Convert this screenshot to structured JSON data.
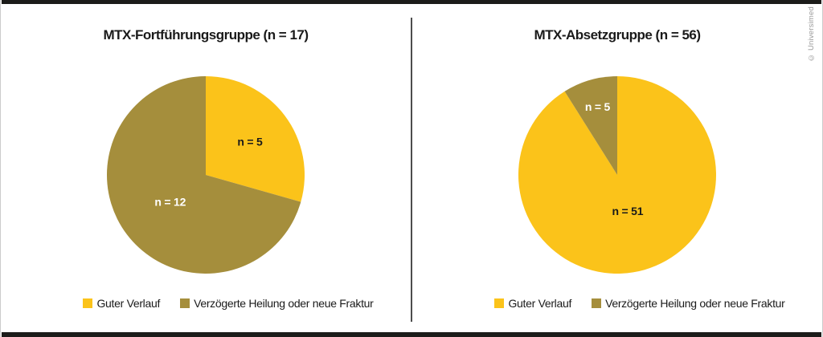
{
  "page": {
    "credit": "© Universimed",
    "background": "#ffffff",
    "top_bar_color": "#1c1c1a",
    "bottom_bar_color": "#1c1c1a",
    "divider_color": "#4d4d4d",
    "border_color": "#cccccc"
  },
  "colors": {
    "yellow": "#FBC31A",
    "olive": "#A58E3C",
    "label_dark": "#1a1a1a",
    "label_light": "#ffffff"
  },
  "legend": {
    "items": [
      {
        "label": "Guter Verlauf",
        "color": "#FBC31A"
      },
      {
        "label": "Verzögerte Heilung oder neue Fraktur",
        "color": "#A58E3C"
      }
    ]
  },
  "chart_data": [
    {
      "type": "pie",
      "title": "MTX-Fortführungsgruppe (n = 17)",
      "n_total": 17,
      "start_angle_deg": 0,
      "direction": "clockwise",
      "legend_position": "bottom",
      "slices": [
        {
          "name": "Guter Verlauf",
          "value": 5,
          "label": "n = 5",
          "color": "#FBC31A",
          "label_color": "#1a1a1a",
          "label_r": 0.56
        },
        {
          "name": "Verzögerte Heilung oder neue Fraktur",
          "value": 12,
          "label": "n = 12",
          "color": "#A58E3C",
          "label_color": "#ffffff",
          "label_r": 0.45
        }
      ]
    },
    {
      "type": "pie",
      "title": "MTX-Absetzgruppe (n = 56)",
      "n_total": 56,
      "start_angle_deg": 0,
      "direction": "clockwise",
      "legend_position": "bottom",
      "slices": [
        {
          "name": "Guter Verlauf",
          "value": 51,
          "label": "n = 51",
          "color": "#FBC31A",
          "label_color": "#1a1a1a",
          "label_r": 0.38
        },
        {
          "name": "Verzögerte Heilung oder neue Fraktur",
          "value": 5,
          "label": "n = 5",
          "color": "#A58E3C",
          "label_color": "#ffffff",
          "label_r": 0.72
        }
      ]
    }
  ]
}
